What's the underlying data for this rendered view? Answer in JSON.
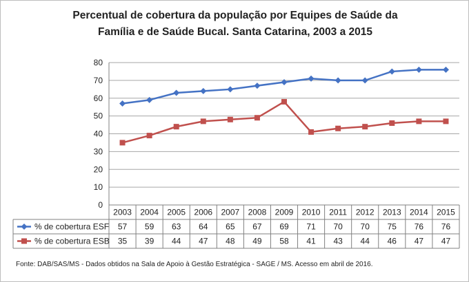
{
  "chart_data": {
    "type": "line",
    "title_lines": [
      "Percentual de cobertura da população por Equipes de Saúde da",
      "Família e de Saúde Bucal. Santa Catarina, 2003 a 2015"
    ],
    "categories": [
      "2003",
      "2004",
      "2005",
      "2006",
      "2007",
      "2008",
      "2009",
      "2010",
      "2011",
      "2012",
      "2013",
      "2014",
      "2015"
    ],
    "series": [
      {
        "name": "% de cobertura ESF",
        "color": "#4472C4",
        "marker": "diamond",
        "values": [
          57,
          59,
          63,
          64,
          65,
          67,
          69,
          71,
          70,
          70,
          75,
          76,
          76
        ]
      },
      {
        "name": "% de cobertura ESB",
        "color": "#C0504D",
        "marker": "square",
        "values": [
          35,
          39,
          44,
          47,
          48,
          49,
          58,
          41,
          43,
          44,
          46,
          47,
          47
        ]
      }
    ],
    "yticks": [
      "0",
      "10",
      "20",
      "30",
      "40",
      "50",
      "60",
      "70",
      "80"
    ],
    "ylim": [
      0,
      80
    ],
    "grid": true,
    "legend": "data-table-left",
    "xlabel": "",
    "ylabel": ""
  },
  "source_note": "Fonte:  DAB/SAS/MS - Dados obtidos na Sala de Apoio à Gestão Estratégica - SAGE / MS. Acesso em abril de 2016."
}
